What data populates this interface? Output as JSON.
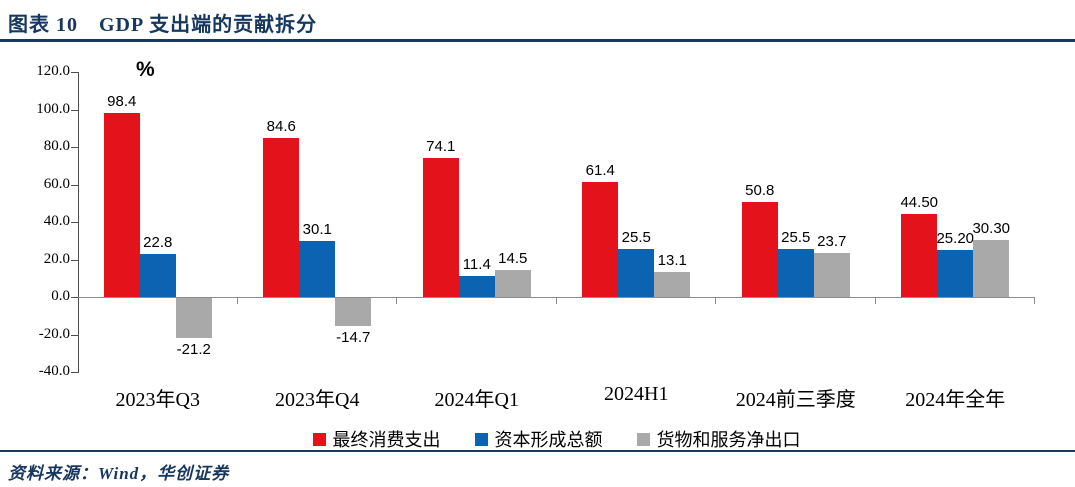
{
  "header": {
    "title": "图表 10　GDP 支出端的贡献拆分"
  },
  "footer": {
    "source": "资料来源：Wind，华创证券"
  },
  "chart_data": {
    "type": "bar",
    "title": "GDP 支出端的贡献拆分",
    "unit_label": "%",
    "categories": [
      "2023年Q3",
      "2023年Q4",
      "2024年Q1",
      "2024H1",
      "2024前三季度",
      "2024年全年"
    ],
    "series": [
      {
        "name": "最终消费支出",
        "color": "#E3121B",
        "values": [
          98.4,
          84.6,
          74.1,
          61.4,
          50.8,
          44.5
        ],
        "labels": [
          "98.4",
          "84.6",
          "74.1",
          "61.4",
          "50.8",
          "44.50"
        ]
      },
      {
        "name": "资本形成总额",
        "color": "#0B63B1",
        "values": [
          22.8,
          30.1,
          11.4,
          25.5,
          25.5,
          25.2
        ],
        "labels": [
          "22.8",
          "30.1",
          "11.4",
          "25.5",
          "25.5",
          "25.20"
        ]
      },
      {
        "name": "货物和服务净出口",
        "color": "#A9A9A9",
        "values": [
          -21.2,
          -14.7,
          14.5,
          13.1,
          23.7,
          30.3
        ],
        "labels": [
          "-21.2",
          "-14.7",
          "14.5",
          "13.1",
          "23.7",
          "30.30"
        ]
      }
    ],
    "ylim": [
      -40,
      120
    ],
    "ytick_step": 20,
    "yticks": [
      "120.0",
      "100.0",
      "80.0",
      "60.0",
      "40.0",
      "20.0",
      "0.0",
      "-20.0",
      "-40.0"
    ],
    "grid": false,
    "legend_position": "bottom"
  }
}
